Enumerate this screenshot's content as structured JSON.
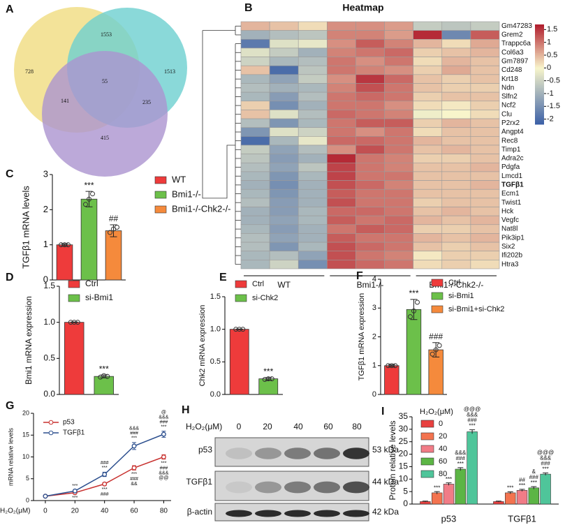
{
  "chart_data": [
    {
      "type": "venn",
      "label": "A",
      "values": [
        728,
        1553,
        1513,
        55,
        141,
        235,
        415
      ],
      "colors": [
        "#f0dc80",
        "#6dcfd0",
        "#ab93cf"
      ]
    },
    {
      "type": "heatmap",
      "label": "B",
      "title": "Heatmap",
      "rows": [
        "Gm47283",
        "Grem2",
        "Trappc6a",
        "Col6a3",
        "Gm7897",
        "Cd248",
        "Krt18",
        "Ndn",
        "Slfn2",
        "Ncf2",
        "Clu",
        "P2rx2",
        "Angpt4",
        "Rec8",
        "Timp1",
        "Adra2c",
        "Pdgfa",
        "Lmcd1",
        "TGFβ1",
        "Ecm1",
        "Twist1",
        "Hck",
        "Vegfc",
        "Nat8l",
        "Pik3ip1",
        "Six2",
        "Ifi202b",
        "Htra3"
      ],
      "groups": [
        "WT",
        "Bmi1-/-",
        "Bmi1-/-Chk2-/-"
      ],
      "values": [
        [
          0.5,
          0.4,
          0.2,
          0.8,
          0.8,
          0.7,
          -0.6,
          -0.7,
          -0.6
        ],
        [
          -1,
          -0.8,
          -0.7,
          0.9,
          0.9,
          0.7,
          1.6,
          -1.6,
          1.2
        ],
        [
          -1.8,
          -0.3,
          -0.2,
          0.8,
          1.2,
          0.9,
          0.5,
          0.2,
          0.6
        ],
        [
          -0.3,
          -0.6,
          -1,
          0.9,
          1,
          1.1,
          0.3,
          0.4,
          0.5
        ],
        [
          -0.5,
          -0.9,
          -0.8,
          1,
          0.8,
          1,
          0.2,
          0.5,
          0.4
        ],
        [
          0.4,
          -2,
          -0.7,
          1,
          0.9,
          0.8,
          0.3,
          0.6,
          0.4
        ],
        [
          -0.9,
          -1.2,
          -0.6,
          0.8,
          1.5,
          1.1,
          0.4,
          0.3,
          0.4
        ],
        [
          -0.8,
          -1,
          -0.9,
          0.9,
          1.3,
          1,
          0.4,
          0.3,
          0.3
        ],
        [
          -0.9,
          -1.3,
          -0.8,
          1,
          1.1,
          1,
          0.3,
          0.4,
          0.4
        ],
        [
          0.3,
          -1.5,
          -1,
          1,
          1,
          0.8,
          0.2,
          0.1,
          0.3
        ],
        [
          0.4,
          -0.3,
          -0.8,
          1.1,
          1,
          0.9,
          -0.1,
          0,
          0.2
        ],
        [
          -0.8,
          -1.4,
          -0.9,
          1,
          1.2,
          1.2,
          0.3,
          0.5,
          0.4
        ],
        [
          -1.4,
          -0.3,
          -0.5,
          1,
          0.8,
          1,
          0.2,
          0.4,
          0.4
        ],
        [
          -2,
          -0.9,
          -0.2,
          1.1,
          1.1,
          1,
          0.5,
          0.4,
          0.4
        ],
        [
          -0.6,
          -1.2,
          -0.8,
          0.8,
          1.3,
          1,
          0.4,
          0.5,
          0.4
        ],
        [
          -0.7,
          -1.3,
          -1,
          1.6,
          1,
          0.9,
          0.3,
          0.3,
          0.4
        ],
        [
          -0.8,
          -1.2,
          -0.7,
          1.4,
          1,
          0.9,
          0.4,
          0.4,
          0.5
        ],
        [
          -0.9,
          -1.4,
          -0.9,
          1.4,
          1,
          1,
          0.4,
          0.4,
          0.4
        ],
        [
          -1,
          -1.5,
          -1,
          1.3,
          1.1,
          0.9,
          0.4,
          0.4,
          0.5
        ],
        [
          -0.9,
          -1.4,
          -1,
          1.2,
          1,
          1,
          0.4,
          0.4,
          0.4
        ],
        [
          -0.8,
          -1.3,
          -1,
          1.3,
          1,
          1,
          0.3,
          0.4,
          0.4
        ],
        [
          -1,
          -1.3,
          -0.9,
          1.1,
          1.1,
          1,
          0.4,
          0.5,
          0.4
        ],
        [
          -1,
          -1.2,
          -0.9,
          1.2,
          1,
          1.1,
          0.5,
          0.4,
          0.5
        ],
        [
          -0.9,
          -1.3,
          -1,
          1,
          1.2,
          1.1,
          0.3,
          0.3,
          0.4
        ],
        [
          -0.8,
          -1.2,
          -1,
          1.2,
          1,
          1,
          0.5,
          0.4,
          0.5
        ],
        [
          -0.8,
          -1.4,
          -0.9,
          1.3,
          1.1,
          1,
          0.4,
          0.3,
          0.4
        ],
        [
          -0.9,
          -0.8,
          -1.2,
          1.3,
          1,
          0.9,
          0.1,
          0.3,
          0.3
        ],
        [
          -0.9,
          -0.5,
          -1.5,
          1.3,
          1.1,
          1,
          0.2,
          0.3,
          0.2
        ]
      ],
      "zlim": [
        -2.2,
        1.7
      ],
      "zticks": [
        1.5,
        1,
        0.5,
        0,
        -0.5,
        -1,
        -1.5,
        -2
      ],
      "colors": [
        "#3a5fa6",
        "#f8f5cb",
        "#b11d2d"
      ],
      "highlight_row": 18,
      "highlight_color": "#e3262d"
    },
    {
      "type": "bar",
      "label": "C",
      "ylabel": "TGFβ1 mRNA levels",
      "categories": [
        "WT",
        "Bmi1-/-",
        "Bmi1-/-Chk2-/-"
      ],
      "values": [
        1,
        2.3,
        1.4
      ],
      "errors": [
        0.03,
        0.22,
        0.17
      ],
      "points": [
        [
          1,
          1,
          1
        ],
        [
          2.15,
          2.45,
          2.3
        ],
        [
          1.35,
          1.5,
          1.45
        ]
      ],
      "annotations": [
        null,
        "***",
        "##"
      ],
      "colors": [
        "#ee3b3b",
        "#6cc04a",
        "#f58a3c"
      ],
      "ylim": [
        0,
        3
      ],
      "yticks": [
        0,
        1,
        2,
        3
      ]
    },
    {
      "type": "bar",
      "label": "D",
      "ylabel": "Bmi1 mRNA expression",
      "categories": [
        "Ctrl",
        "si-Bmi1"
      ],
      "values": [
        1,
        0.25
      ],
      "errors": [
        0.005,
        0.02
      ],
      "points": [
        [
          1,
          1,
          1
        ],
        [
          0.24,
          0.25,
          0.26
        ]
      ],
      "annotations": [
        null,
        "***"
      ],
      "colors": [
        "#ee3b3b",
        "#6cc04a"
      ],
      "ylim": [
        0,
        1.5
      ],
      "yticks": [
        {
          "value": 0,
          "label": "0.0"
        },
        {
          "value": 0.5,
          "label": "0.5"
        },
        {
          "value": 1,
          "label": "1.0"
        },
        {
          "value": 1.5,
          "label": "1.5"
        }
      ]
    },
    {
      "type": "bar",
      "label": "E",
      "ylabel": "Chk2 mRNA expression",
      "categories": [
        "Ctrl",
        "si-Chk2"
      ],
      "values": [
        1,
        0.24
      ],
      "errors": [
        0.005,
        0.02
      ],
      "points": [
        [
          1,
          1,
          1
        ],
        [
          0.23,
          0.24,
          0.24
        ]
      ],
      "annotations": [
        null,
        "***"
      ],
      "colors": [
        "#ee3b3b",
        "#6cc04a"
      ],
      "ylim": [
        0,
        1.5
      ],
      "yticks": [
        {
          "value": 0,
          "label": "0.0"
        },
        {
          "value": 0.5,
          "label": "0.5"
        },
        {
          "value": 1,
          "label": "1.0"
        },
        {
          "value": 1.5,
          "label": "1.5"
        }
      ]
    },
    {
      "type": "bar",
      "label": "F",
      "ylabel": "TGFβ1 mRNA expression",
      "categories": [
        "Ctrl",
        "si-Bmi1",
        "si-Bmi1+si-Chk2"
      ],
      "values": [
        1,
        2.95,
        1.55
      ],
      "errors": [
        0.03,
        0.35,
        0.25
      ],
      "points": [
        [
          1,
          1,
          1
        ],
        [
          2.7,
          3.2,
          2.9
        ],
        [
          1.4,
          1.7,
          1.55
        ]
      ],
      "annotations": [
        null,
        "***",
        "###"
      ],
      "colors": [
        "#ee3b3b",
        "#6cc04a",
        "#f58a3c"
      ],
      "ylim": [
        0,
        4
      ],
      "yticks": [
        0,
        1,
        2,
        3,
        4
      ]
    },
    {
      "type": "line",
      "label": "G",
      "ylabel": "mRNA relative levels",
      "xlabel": "H₂O₂(μM)",
      "x": [
        0,
        20,
        40,
        60,
        80
      ],
      "xlim": [
        -8,
        85
      ],
      "xticks": [
        0,
        20,
        40,
        60,
        80
      ],
      "ylim": [
        0,
        20
      ],
      "yticks": [
        0,
        5,
        10,
        15,
        20
      ],
      "series": [
        {
          "name": "p53",
          "color": "#c8312f",
          "values": [
            1,
            1.8,
            3.8,
            7.5,
            10
          ],
          "errors": [
            0.1,
            0.2,
            0.3,
            0.5,
            0.5
          ],
          "annotation_position": "below",
          "annotations": [
            null,
            [
              "***"
            ],
            [
              "***",
              "###"
            ],
            [
              "***",
              "###",
              "&&"
            ],
            [
              "***",
              "###",
              "&&&",
              "@@"
            ]
          ]
        },
        {
          "name": "TGFβ1",
          "color": "#2c4f8e",
          "values": [
            1,
            2.2,
            6,
            12.5,
            15.2
          ],
          "errors": [
            0.1,
            0.2,
            0.5,
            0.8,
            0.7
          ],
          "annotation_position": "above",
          "annotations": [
            null,
            [
              "***"
            ],
            [
              "###",
              "***"
            ],
            [
              "&&&",
              "###",
              "***"
            ],
            [
              "@",
              "&&&",
              "###",
              "***"
            ]
          ]
        }
      ]
    },
    {
      "type": "grouped_bar",
      "label": "I",
      "ylabel": "Protein relative levels",
      "legend_title": "H₂O₂(μM)",
      "categories": [
        "p53",
        "TGFβ1"
      ],
      "ylim": [
        0,
        35
      ],
      "yticks": [
        0,
        5,
        10,
        15,
        20,
        25,
        30,
        35
      ],
      "series": [
        {
          "name": "0",
          "color": "#e8403f",
          "values": [
            1,
            1
          ],
          "errors": [
            0.2,
            0.2
          ],
          "annotations": [
            null,
            null
          ]
        },
        {
          "name": "20",
          "color": "#f3734f",
          "values": [
            4.5,
            4.5
          ],
          "errors": [
            0.5,
            0.4
          ],
          "annotations": [
            [
              "***"
            ],
            [
              "***"
            ]
          ]
        },
        {
          "name": "40",
          "color": "#f17c87",
          "values": [
            8,
            5.5
          ],
          "errors": [
            0.5,
            0.4
          ],
          "annotations": [
            [
              "***"
            ],
            [
              "##",
              "***"
            ]
          ]
        },
        {
          "name": "60",
          "color": "#5cb545",
          "values": [
            14,
            6.5
          ],
          "errors": [
            0.6,
            0.5
          ],
          "annotations": [
            [
              "&&&",
              "###",
              "***"
            ],
            [
              "&",
              "###",
              "***"
            ]
          ]
        },
        {
          "name": "80",
          "color": "#4fc59a",
          "values": [
            29,
            12
          ],
          "errors": [
            0.8,
            0.5
          ],
          "annotations": [
            [
              "@@@",
              "&&&",
              "###",
              "***"
            ],
            [
              "@@@",
              "&&&",
              "###",
              "***"
            ]
          ]
        }
      ]
    }
  ],
  "blot": {
    "label": "H",
    "xlabel": "H₂O₂(μM)",
    "lanes": [
      "0",
      "20",
      "40",
      "60",
      "80"
    ],
    "rows": [
      "p53",
      "TGFβ1",
      "β-actin"
    ],
    "sizes": [
      "53 kDa",
      "44 kDa",
      "42 kDa"
    ]
  }
}
